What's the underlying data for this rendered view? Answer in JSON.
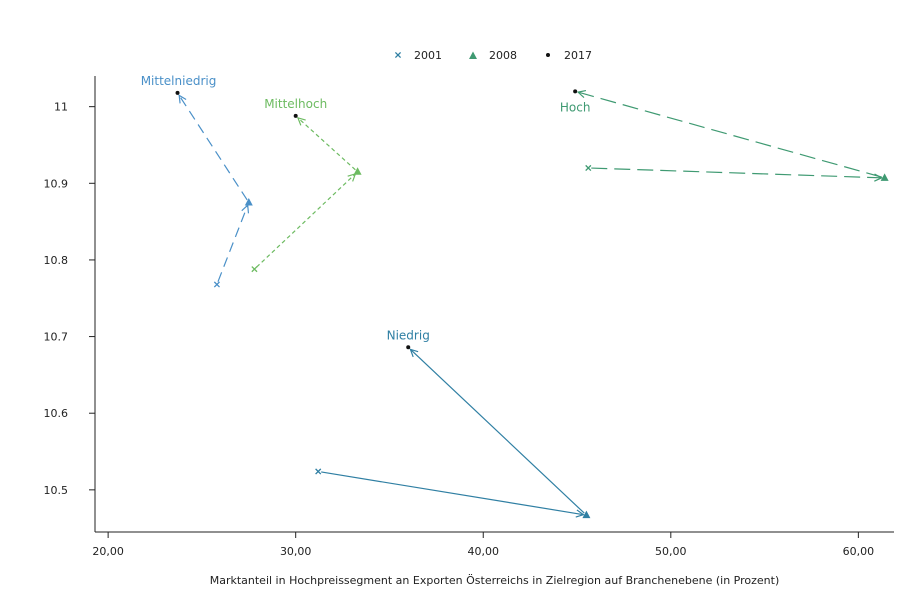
{
  "chart_data": {
    "type": "scatter",
    "title": "",
    "xlabel": "Marktanteil in Hochpreissegment an Exporten Österreichs in Zielregion auf Branchenebene (in Prozent)",
    "ylabel": "",
    "xlim": [
      19.3,
      61.9
    ],
    "ylim": [
      10.445,
      11.04
    ],
    "x_ticks": [
      20,
      30,
      40,
      50,
      60
    ],
    "x_tick_labels": [
      "20,00",
      "30,00",
      "40,00",
      "50,00",
      "60,00"
    ],
    "y_ticks": [
      10.5,
      10.6,
      10.7,
      10.8,
      10.9,
      11
    ],
    "y_tick_labels": [
      "10.5",
      "10.6",
      "10.7",
      "10.8",
      "10.9",
      "11"
    ],
    "grid": false,
    "legend_position": "top-center",
    "legend": [
      {
        "label": "2001",
        "marker": "x"
      },
      {
        "label": "2008",
        "marker": "triangle"
      },
      {
        "label": "2017",
        "marker": "dot"
      }
    ],
    "series": [
      {
        "name": "Mittelniedrig",
        "color": "#4a90c8",
        "dash": "10,6",
        "points": [
          {
            "year": "2001",
            "x": 25.8,
            "y": 10.768
          },
          {
            "year": "2008",
            "x": 27.5,
            "y": 10.875
          },
          {
            "year": "2017",
            "x": 23.7,
            "y": 11.018
          }
        ]
      },
      {
        "name": "Mittelhoch",
        "color": "#6dbb61",
        "dash": "4,3",
        "points": [
          {
            "year": "2001",
            "x": 27.8,
            "y": 10.788
          },
          {
            "year": "2008",
            "x": 33.3,
            "y": 10.915
          },
          {
            "year": "2017",
            "x": 30.0,
            "y": 10.988
          }
        ]
      },
      {
        "name": "Hoch",
        "color": "#3f9a72",
        "dash": "16,7",
        "points": [
          {
            "year": "2001",
            "x": 45.6,
            "y": 10.92
          },
          {
            "year": "2008",
            "x": 61.4,
            "y": 10.907
          },
          {
            "year": "2017",
            "x": 44.9,
            "y": 11.02
          }
        ]
      },
      {
        "name": "Niedrig",
        "color": "#2f7fa3",
        "dash": "",
        "points": [
          {
            "year": "2001",
            "x": 31.2,
            "y": 10.524
          },
          {
            "year": "2008",
            "x": 45.5,
            "y": 10.467
          },
          {
            "year": "2017",
            "x": 36.0,
            "y": 10.686
          }
        ]
      }
    ],
    "annotations": [
      {
        "text": "Mittelniedrig",
        "x": 23.7,
        "y": 11.018,
        "color": "#4a90c8"
      },
      {
        "text": "Mittelhoch",
        "x": 30.0,
        "y": 10.988,
        "color": "#6dbb61"
      },
      {
        "text": "Hoch",
        "x": 44.9,
        "y": 11.02,
        "color": "#3f9a72"
      },
      {
        "text": "Niedrig",
        "x": 36.0,
        "y": 10.686,
        "color": "#2f7fa3"
      }
    ]
  }
}
